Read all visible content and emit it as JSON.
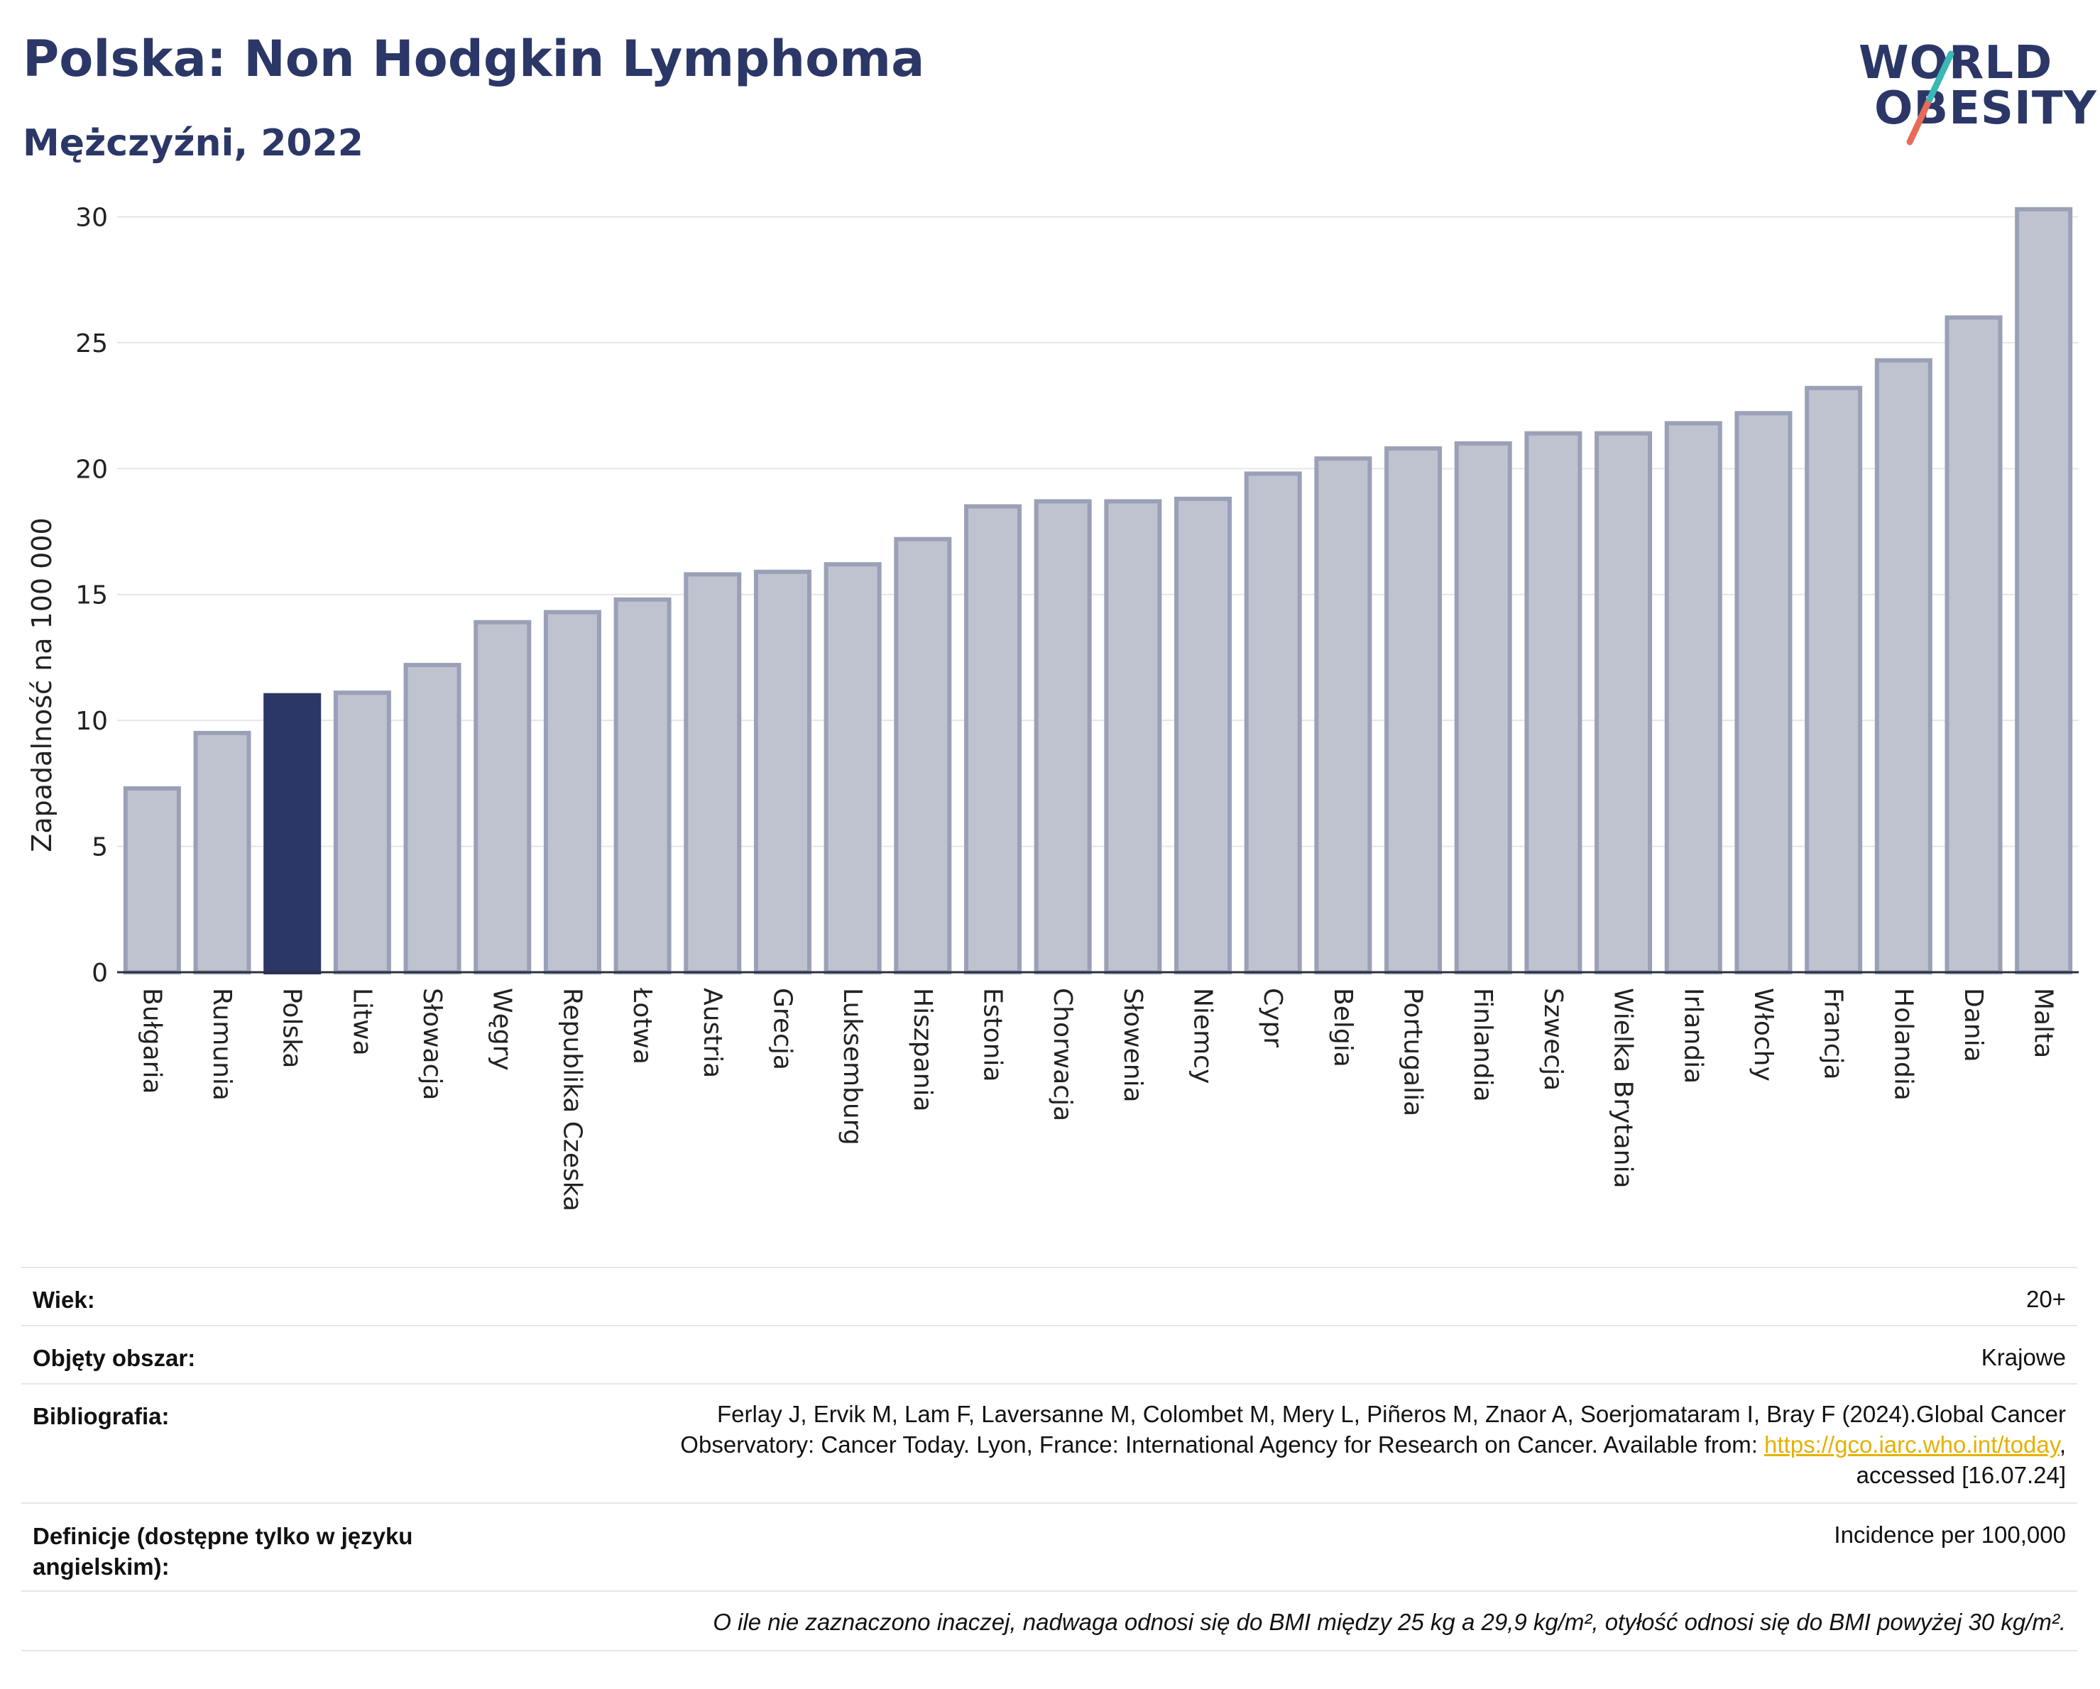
{
  "header": {
    "title": "Polska: Non Hodgkin Lymphoma",
    "subtitle": "Mężczyźni, 2022"
  },
  "logo": {
    "line1": "WORLD",
    "line2": "OBESITY"
  },
  "colors": {
    "highlight": "#2b3766",
    "bar": "#bfc3d0",
    "bar_border": "#9aa0b6",
    "grid": "#e6e6e6",
    "link": "#e5b100"
  },
  "chart_data": {
    "type": "bar",
    "ylabel": "Zapadalność na 100 000",
    "ylim": [
      0,
      31
    ],
    "yticks": [
      0,
      5,
      10,
      15,
      20,
      25,
      30
    ],
    "highlight": "Polska",
    "categories": [
      "Bułgaria",
      "Rumunia",
      "Polska",
      "Litwa",
      "Słowacja",
      "Węgry",
      "Republika Czeska",
      "Łotwa",
      "Austria",
      "Grecja",
      "Luksemburg",
      "Hiszpania",
      "Estonia",
      "Chorwacja",
      "Słowenia",
      "Niemcy",
      "Cypr",
      "Belgia",
      "Portugalia",
      "Finlandia",
      "Szwecja",
      "Wielka Brytania",
      "Irlandia",
      "Włochy",
      "Francja",
      "Holandia",
      "Dania",
      "Malta"
    ],
    "values": [
      7.3,
      9.5,
      11.0,
      11.1,
      12.2,
      13.9,
      14.3,
      14.8,
      15.8,
      15.9,
      16.2,
      17.2,
      18.5,
      18.7,
      18.7,
      18.8,
      19.8,
      20.4,
      20.8,
      21.0,
      21.4,
      21.4,
      21.8,
      22.2,
      23.2,
      24.3,
      26.0,
      30.3
    ]
  },
  "info": {
    "age_label": "Wiek:",
    "age_value": "20+",
    "coverage_label": "Objęty obszar:",
    "coverage_value": "Krajowe",
    "bib_label": "Bibliografia:",
    "bib_line1": "Ferlay J, Ervik M, Lam F, Laversanne M, Colombet M, Mery L, Piñeros M, Znaor A, Soerjomataram I, Bray F (2024).Global Cancer",
    "bib_line2_pre": "Observatory: Cancer Today. Lyon, France: International Agency for Research on Cancer. Available from: ",
    "bib_link": "https://gco.iarc.who.int/today",
    "bib_line2_post": ",",
    "bib_line3": "accessed [16.07.24]",
    "def_label": "Definicje (dostępne tylko w języku angielskim):",
    "def_value": "Incidence per 100,000",
    "note": "O ile nie zaznaczono inaczej, nadwaga odnosi się do BMI między 25 kg a 29,9 kg/m², otyłość odnosi się do BMI powyżej 30 kg/m²."
  }
}
